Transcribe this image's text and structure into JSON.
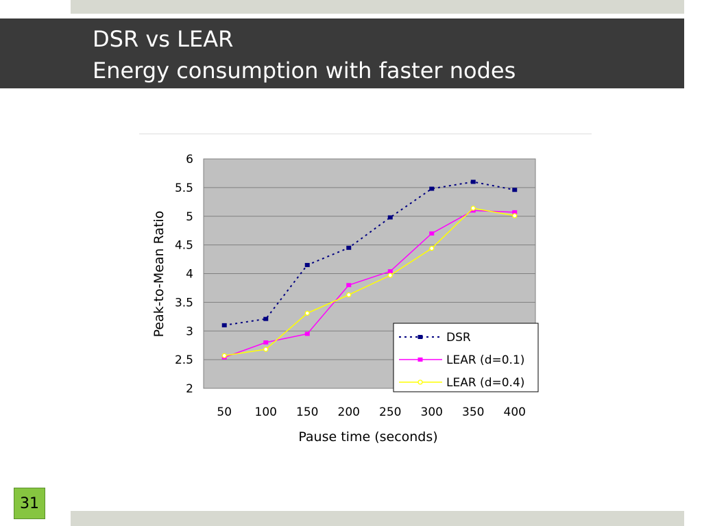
{
  "slide": {
    "title_line1": "DSR vs LEAR",
    "title_line2": "Energy consumption with faster nodes",
    "page_number": "31"
  },
  "colors": {
    "title_bar": "#3a3a3a",
    "band": "#d7d9d0",
    "plot_bg": "#c0c0c0",
    "page_badge": "#86c540"
  },
  "chart_data": {
    "type": "line",
    "xlabel": "Pause time (seconds)",
    "ylabel": "Peak-to-Mean Ratio",
    "x": [
      50,
      100,
      150,
      200,
      250,
      300,
      350,
      400
    ],
    "categories": [
      "50",
      "100",
      "150",
      "200",
      "250",
      "300",
      "350",
      "400"
    ],
    "ylim": [
      2,
      6
    ],
    "yticks": [
      "2",
      "2.5",
      "3",
      "3.5",
      "4",
      "4.5",
      "5",
      "5.5",
      "6"
    ],
    "grid": true,
    "legend_position": "bottom-right",
    "series": [
      {
        "name": "DSR",
        "color": "#000080",
        "style": "dotted",
        "marker": "square",
        "values": [
          3.1,
          3.21,
          4.15,
          4.45,
          4.98,
          5.48,
          5.6,
          5.46
        ]
      },
      {
        "name": "LEAR (d=0.1)",
        "color": "#ff00ff",
        "style": "solid",
        "marker": "square",
        "values": [
          2.54,
          2.8,
          2.95,
          3.8,
          4.04,
          4.7,
          5.1,
          5.07
        ]
      },
      {
        "name": "LEAR (d=0.4)",
        "color": "#ffff00",
        "style": "solid",
        "marker": "circle",
        "values": [
          2.57,
          2.68,
          3.31,
          3.63,
          3.97,
          4.44,
          5.14,
          5.01
        ]
      }
    ]
  }
}
